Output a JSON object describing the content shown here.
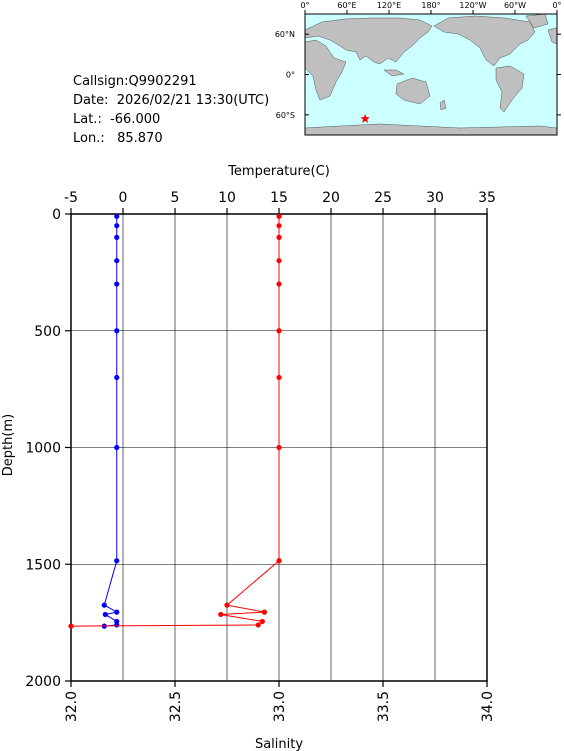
{
  "info": {
    "callsign": "Callsign:Q9902291",
    "date": "Date:  2026/02/21 13:30(UTC)",
    "lat": "Lat.:  -66.000",
    "lon": "Lon.:   85.870"
  },
  "map": {
    "top_labels": [
      "0°",
      "60°E",
      "120°E",
      "180°",
      "120°W",
      "60°W",
      "0°"
    ],
    "right_labels": [
      "60°N",
      "0°",
      "60°S"
    ],
    "station": {
      "lat": -66.0,
      "lon": 85.87
    },
    "colors": {
      "ocean": "#ccffff",
      "land": "#bfbfbf",
      "marker": "#ff0000"
    }
  },
  "chart_data": {
    "type": "line",
    "top_axis": {
      "label": "Temperature(C)",
      "range": [
        -5,
        35
      ],
      "ticks": [
        "-5",
        "0",
        "5",
        "10",
        "15",
        "20",
        "25",
        "30",
        "35"
      ]
    },
    "bottom_axis": {
      "label": "Salinity",
      "range": [
        32.0,
        34.0
      ],
      "ticks": [
        "32.0",
        "32.5",
        "33.0",
        "33.5",
        "34.0"
      ]
    },
    "left_axis": {
      "label": "Depth(m)",
      "range": [
        0,
        2000
      ],
      "reversed": true,
      "ticks": [
        "0",
        "500",
        "1000",
        "1500",
        "2000"
      ]
    },
    "grid": true,
    "series": [
      {
        "color": "#0000ff",
        "axis": "temperature",
        "depth": [
          10,
          50,
          100,
          200,
          300,
          500,
          700,
          1000,
          1485,
          1675,
          1705,
          1715,
          1745,
          1760,
          1765
        ],
        "values": [
          -0.6,
          -0.6,
          -0.6,
          -0.6,
          -0.6,
          -0.6,
          -0.6,
          -0.6,
          -0.6,
          -1.8,
          -0.6,
          -1.7,
          -0.6,
          -0.6,
          -1.8
        ]
      },
      {
        "color": "#ff0000",
        "axis": "salinity",
        "depth": [
          10,
          50,
          100,
          200,
          300,
          500,
          700,
          1000,
          1485,
          1675,
          1705,
          1715,
          1745,
          1760,
          1765
        ],
        "values": [
          33.0,
          33.0,
          33.0,
          33.0,
          33.0,
          33.0,
          33.0,
          33.0,
          33.0,
          32.75,
          32.93,
          32.72,
          32.92,
          32.9,
          32.0
        ]
      }
    ]
  }
}
